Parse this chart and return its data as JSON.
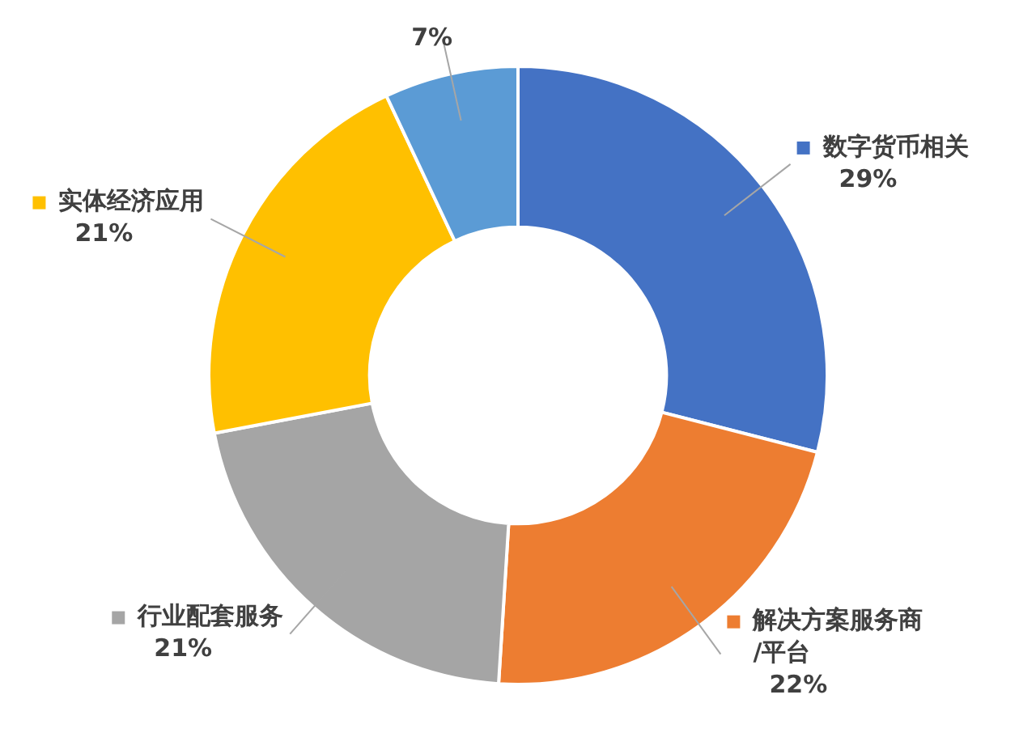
{
  "chart_data": {
    "type": "donut",
    "categories": [
      "数字货币相关",
      "解决方案服务商\n/平台",
      "行业配套服务",
      "实体经济应用",
      null
    ],
    "values": [
      29,
      22,
      21,
      21,
      7
    ],
    "value_labels": [
      "29%",
      "22%",
      "21%",
      "21%",
      "7%"
    ],
    "colors": [
      "#4472c4",
      "#ed7d31",
      "#a5a5a5",
      "#ffc000",
      "#5b9bd5"
    ],
    "legend": true
  }
}
